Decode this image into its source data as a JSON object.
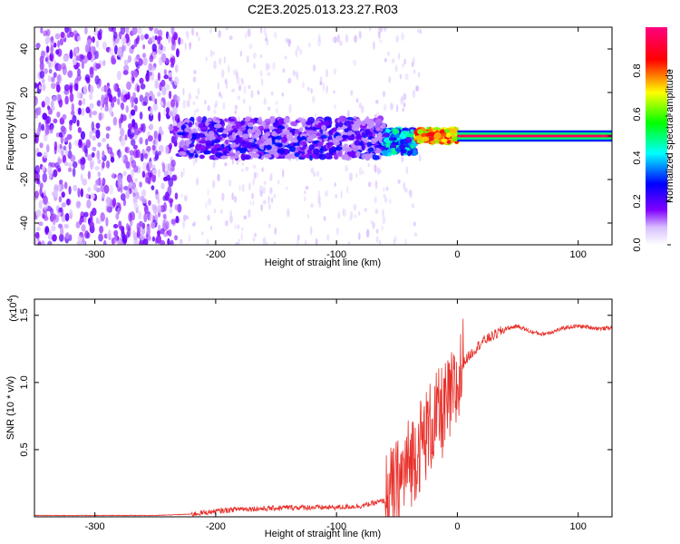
{
  "title": "C2E3.2025.013.23.27.R03",
  "chart_data": [
    {
      "type": "heatmap",
      "xlabel": "Height of straight line (km)",
      "ylabel": "Frequency (Hz)",
      "xlim": [
        -350,
        128
      ],
      "ylim": [
        -50,
        50
      ],
      "xticks": [
        -300,
        -200,
        -100,
        0,
        100
      ],
      "yticks": [
        -40,
        -20,
        0,
        20,
        40
      ],
      "colorbar": {
        "label": "Normalized spectral amplitude",
        "range": [
          0.0,
          1.0
        ],
        "ticks": [
          0.0,
          0.2,
          0.4,
          0.6,
          0.8
        ],
        "tick_labels": [
          "0.0",
          "0.2",
          "0.4",
          "0.6",
          "0.8"
        ],
        "colormap": [
          "#ffffff",
          "#d0b0ff",
          "#8000ff",
          "#0000ff",
          "#00ffff",
          "#00ff00",
          "#ffff00",
          "#ff0000",
          "#ff0080"
        ]
      },
      "regions": [
        {
          "x": [
            -350,
            -230
          ],
          "freq": [
            -50,
            50
          ],
          "amplitude": 0.05,
          "description_level": "noise"
        },
        {
          "x": [
            -230,
            -60
          ],
          "freq": [
            -10,
            8
          ],
          "amplitude": 0.15
        },
        {
          "x": [
            -60,
            -35
          ],
          "freq": [
            -8,
            3
          ],
          "amplitude": 0.35
        },
        {
          "x": [
            -35,
            0
          ],
          "freq": [
            -3,
            3
          ],
          "amplitude": 0.75
        },
        {
          "x": [
            0,
            128
          ],
          "freq": [
            -2,
            2
          ],
          "amplitude": 0.95
        }
      ],
      "grid": false
    },
    {
      "type": "line",
      "xlabel": "Height of straight line (km)",
      "ylabel": "SNR (10 * v/v)",
      "y_multiplier_label": "(x10",
      "y_multiplier_exp": "4",
      "xlim": [
        -350,
        128
      ],
      "ylim": [
        0,
        1.62
      ],
      "xticks": [
        -300,
        -200,
        -100,
        0,
        100
      ],
      "yticks": [
        0.5,
        1.0,
        1.5
      ],
      "ytick_labels": [
        "0.5",
        "1.0",
        "1.5"
      ],
      "color": "#e8302a",
      "series": [
        {
          "x": [
            -350,
            -300,
            -250,
            -220,
            -200,
            -180,
            -160,
            -140,
            -120,
            -100,
            -80,
            -60,
            -50,
            -40,
            -30,
            -20,
            -10,
            0,
            5,
            10,
            20,
            30,
            40,
            50,
            60,
            70,
            80,
            90,
            100,
            110,
            120,
            128
          ],
          "values": [
            0.01,
            0.01,
            0.01,
            0.02,
            0.04,
            0.06,
            0.06,
            0.07,
            0.07,
            0.07,
            0.08,
            0.12,
            0.22,
            0.4,
            0.55,
            0.7,
            0.8,
            0.95,
            1.15,
            1.2,
            1.3,
            1.35,
            1.4,
            1.42,
            1.38,
            1.36,
            1.38,
            1.41,
            1.42,
            1.41,
            1.4,
            1.41
          ]
        }
      ],
      "grid": false
    }
  ]
}
